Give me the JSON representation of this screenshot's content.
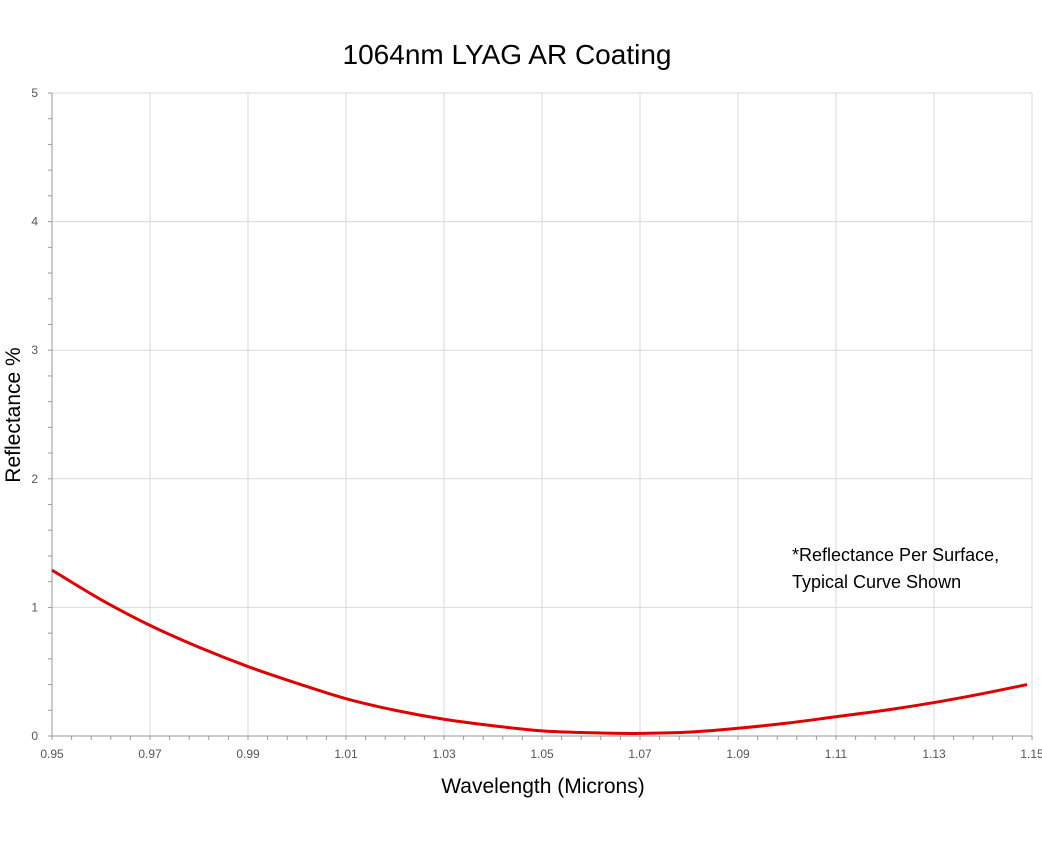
{
  "chart_data": {
    "type": "line",
    "title": "1064nm LYAG AR Coating",
    "xlabel": "Wavelength (Microns)",
    "ylabel": "Reflectance %",
    "xlim": [
      0.95,
      1.15
    ],
    "ylim": [
      0,
      5
    ],
    "x_ticks": [
      "0.95",
      "0.97",
      "0.99",
      "1.01",
      "1.03",
      "1.05",
      "1.07",
      "1.09",
      "1.11",
      "1.13",
      "1.15"
    ],
    "y_ticks": [
      "0",
      "1",
      "2",
      "3",
      "4",
      "5"
    ],
    "grid": true,
    "annotation": [
      "*Reflectance Per Surface,",
      "Typical Curve Shown"
    ],
    "series": [
      {
        "color": "#e00000",
        "x": [
          0.95,
          0.96,
          0.97,
          0.98,
          0.99,
          1.0,
          1.01,
          1.02,
          1.03,
          1.04,
          1.05,
          1.06,
          1.067,
          1.07,
          1.08,
          1.09,
          1.1,
          1.11,
          1.12,
          1.13,
          1.14,
          1.149
        ],
        "y": [
          1.29,
          1.06,
          0.86,
          0.69,
          0.54,
          0.41,
          0.29,
          0.2,
          0.13,
          0.08,
          0.04,
          0.025,
          0.02,
          0.02,
          0.03,
          0.06,
          0.1,
          0.15,
          0.2,
          0.26,
          0.33,
          0.4
        ]
      }
    ]
  }
}
